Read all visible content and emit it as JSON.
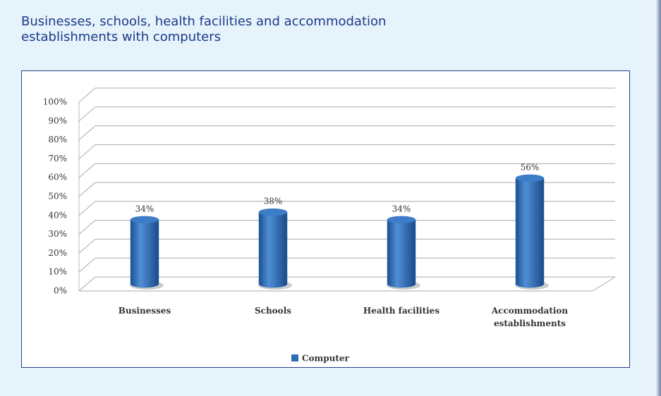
{
  "title": "Businesses, schools, health facilities and accommodation establishments with computers",
  "chart_data": {
    "type": "bar",
    "categories": [
      "Businesses",
      "Schools",
      "Health facilities",
      "Accommodation establishments"
    ],
    "series": [
      {
        "name": "Computer",
        "color": "#2e6db4",
        "values": [
          34,
          38,
          34,
          56
        ],
        "value_labels": [
          "34%",
          "38%",
          "34%",
          "56%"
        ]
      }
    ],
    "ylim": [
      0,
      100
    ],
    "yticks": [
      {
        "value": 0,
        "label": "0%"
      },
      {
        "value": 10,
        "label": "10%"
      },
      {
        "value": 20,
        "label": "20%"
      },
      {
        "value": 30,
        "label": "30%"
      },
      {
        "value": 40,
        "label": "40%"
      },
      {
        "value": 50,
        "label": "50%"
      },
      {
        "value": 60,
        "label": "60%"
      },
      {
        "value": 70,
        "label": "70%"
      },
      {
        "value": 80,
        "label": "80%"
      },
      {
        "value": 90,
        "label": "90%"
      },
      {
        "value": 100,
        "label": "100%"
      }
    ],
    "grid": true,
    "legend": "bottom"
  }
}
